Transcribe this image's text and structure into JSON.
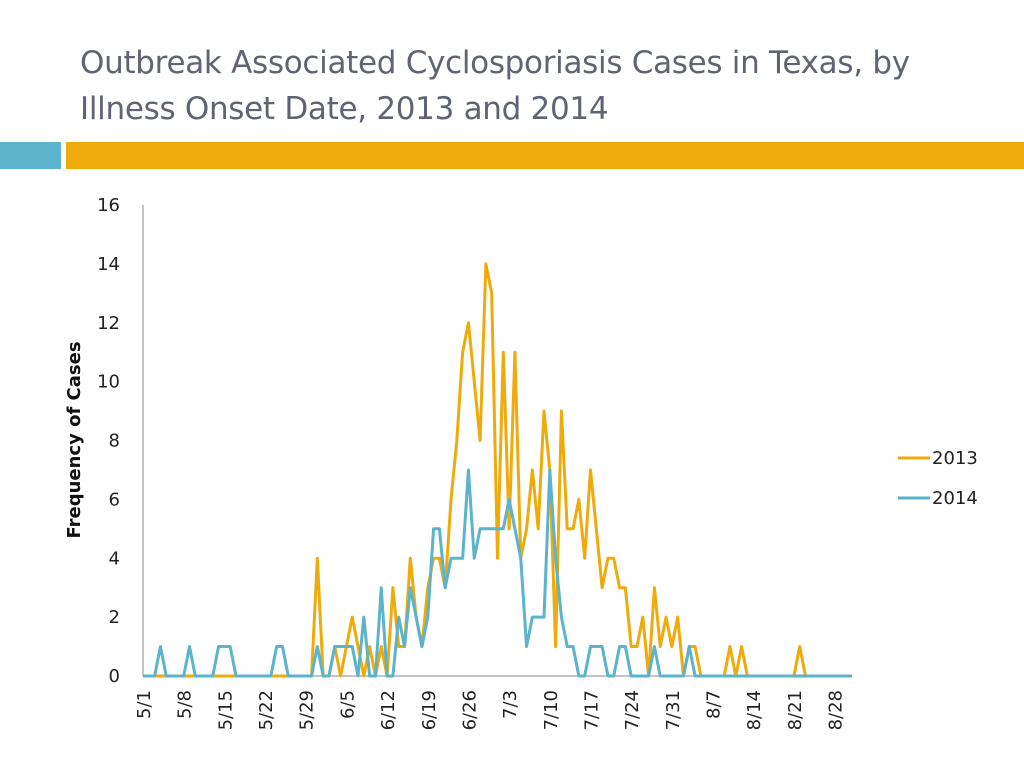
{
  "slide": {
    "title": "Outbreak Associated Cyclosporiasis Cases in Texas, by Illness Onset Date, 2013 and 2014"
  },
  "colors": {
    "accent_blue": "#5bb3cc",
    "accent_gold": "#efaa0b",
    "series_2013": "#efaa0b",
    "series_2014": "#5bb3cc"
  },
  "chart_data": {
    "type": "line",
    "title": "",
    "xlabel": "",
    "ylabel": "Frequency of Cases",
    "ylim": [
      0,
      16
    ],
    "yticks": [
      0,
      2,
      4,
      6,
      8,
      10,
      12,
      14,
      16
    ],
    "x_start": "5/1",
    "x_end": "8/31",
    "xtick_labels": [
      "5/1",
      "5/8",
      "5/15",
      "5/22",
      "5/29",
      "6/5",
      "6/12",
      "6/19",
      "6/26",
      "7/3",
      "7/10",
      "7/17",
      "7/24",
      "7/31",
      "8/7",
      "8/14",
      "8/21",
      "8/28"
    ],
    "grid": false,
    "legend": "right",
    "series": [
      {
        "name": "2013",
        "color": "#efaa0b",
        "values": [
          0,
          0,
          0,
          0,
          0,
          0,
          0,
          0,
          0,
          0,
          0,
          0,
          0,
          0,
          0,
          0,
          0,
          0,
          0,
          0,
          0,
          0,
          0,
          0,
          0,
          0,
          0,
          0,
          0,
          0,
          4,
          0,
          0,
          1,
          0,
          1,
          2,
          1,
          0,
          1,
          0,
          1,
          0,
          3,
          1,
          1,
          4,
          2,
          1,
          3,
          4,
          4,
          3,
          6,
          8,
          11,
          12,
          10,
          8,
          14,
          13,
          4,
          11,
          5,
          11,
          4,
          5,
          7,
          5,
          9,
          7,
          1,
          9,
          5,
          5,
          6,
          4,
          7,
          5,
          3,
          4,
          4,
          3,
          3,
          1,
          1,
          2,
          0,
          3,
          1,
          2,
          1,
          2,
          0,
          1,
          1,
          0,
          0,
          0,
          0,
          0,
          1,
          0,
          1,
          0,
          0,
          0,
          0,
          0,
          0,
          0,
          0,
          0,
          1,
          0,
          0,
          0,
          0,
          0,
          0,
          0,
          0,
          0
        ]
      },
      {
        "name": "2014",
        "color": "#5bb3cc",
        "values": [
          0,
          0,
          0,
          1,
          0,
          0,
          0,
          0,
          1,
          0,
          0,
          0,
          0,
          1,
          1,
          1,
          0,
          0,
          0,
          0,
          0,
          0,
          0,
          1,
          1,
          0,
          0,
          0,
          0,
          0,
          1,
          0,
          0,
          1,
          1,
          1,
          1,
          0,
          2,
          0,
          0,
          3,
          0,
          0,
          2,
          1,
          3,
          2,
          1,
          2,
          5,
          5,
          3,
          4,
          4,
          4,
          7,
          4,
          5,
          5,
          5,
          5,
          5,
          6,
          5,
          4,
          1,
          2,
          2,
          2,
          7,
          4,
          2,
          1,
          1,
          0,
          0,
          1,
          1,
          1,
          0,
          0,
          1,
          1,
          0,
          0,
          0,
          0,
          1,
          0,
          0,
          0,
          0,
          0,
          1,
          0,
          0,
          0,
          0,
          0,
          0,
          0,
          0,
          0,
          0,
          0,
          0,
          0,
          0,
          0,
          0,
          0,
          0,
          0,
          0,
          0,
          0,
          0,
          0,
          0,
          0,
          0,
          0
        ]
      }
    ]
  }
}
